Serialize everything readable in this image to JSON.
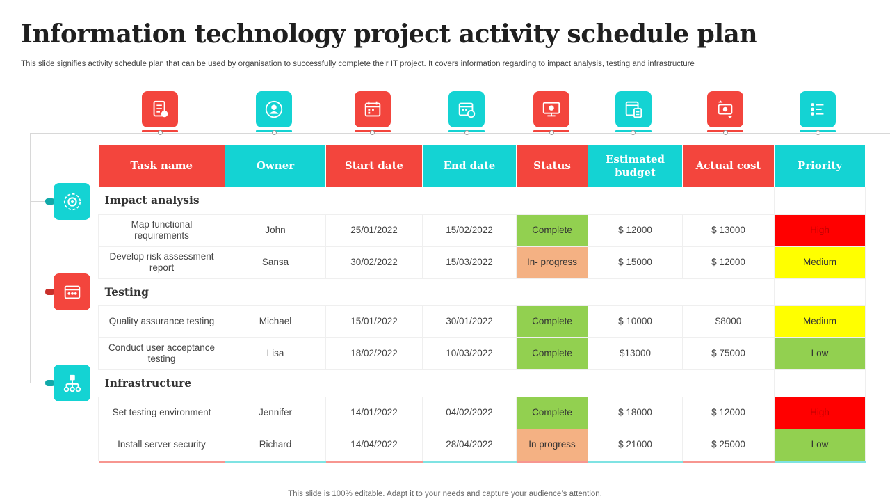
{
  "slide": {
    "title": "Information technology project activity schedule plan",
    "subtitle": "This slide signifies activity schedule plan that can be used by organisation to successfully complete their IT project. It covers information regarding to impact analysis, testing and infrastructure",
    "footer": "This slide is 100% editable. Adapt it to your needs and capture your audience’s attention."
  },
  "colors": {
    "red": "#f3453d",
    "teal": "#14d3d3",
    "complete": "#92d050",
    "in_progress": "#f4b183",
    "priority_high": "#ff0000",
    "priority_medium": "#ffff00",
    "priority_low": "#92d050"
  },
  "column_icons": [
    "task-list-icon",
    "owner-person-icon",
    "start-calendar-icon",
    "end-calendar-icon",
    "status-monitor-icon",
    "budget-calculator-icon",
    "cost-exchange-icon",
    "priority-list-icon"
  ],
  "section_icons": [
    "impact-analysis-gear-icon",
    "testing-checklist-icon",
    "infrastructure-network-icon"
  ],
  "table": {
    "headers": [
      "Task name",
      "Owner",
      "Start date",
      "End date",
      "Status",
      "Estimated budget",
      "Actual cost",
      "Priority"
    ],
    "sections": [
      {
        "name": "Impact analysis",
        "rows": [
          {
            "task": "Map functional requirements",
            "owner": "John",
            "start": "25/01/2022",
            "end": "15/02/2022",
            "status": "Complete",
            "budget": "$ 12000",
            "cost": "$ 13000",
            "priority": "High"
          },
          {
            "task": "Develop  risk assessment report",
            "owner": "Sansa",
            "start": "30/02/2022",
            "end": "15/03/2022",
            "status": "In- progress",
            "budget": "$ 15000",
            "cost": "$ 12000",
            "priority": "Medium"
          }
        ]
      },
      {
        "name": "Testing",
        "rows": [
          {
            "task": "Quality assurance testing",
            "owner": "Michael",
            "start": "15/01/2022",
            "end": "30/01/2022",
            "status": "Complete",
            "budget": "$ 10000",
            "cost": "$8000",
            "priority": "Medium"
          },
          {
            "task": "Conduct user acceptance testing",
            "owner": "Lisa",
            "start": "18/02/2022",
            "end": "10/03/2022",
            "status": "Complete",
            "budget": "$13000",
            "cost": "$ 75000",
            "priority": "Low"
          }
        ]
      },
      {
        "name": "Infrastructure",
        "rows": [
          {
            "task": "Set testing environment",
            "owner": "Jennifer",
            "start": "14/01/2022",
            "end": "04/02/2022",
            "status": "Complete",
            "budget": "$ 18000",
            "cost": "$ 12000",
            "priority": "High"
          },
          {
            "task": "Install server  security",
            "owner": "Richard",
            "start": "14/04/2022",
            "end": "28/04/2022",
            "status": "In progress",
            "budget": "$ 21000",
            "cost": "$ 25000",
            "priority": "Low"
          }
        ]
      }
    ]
  }
}
